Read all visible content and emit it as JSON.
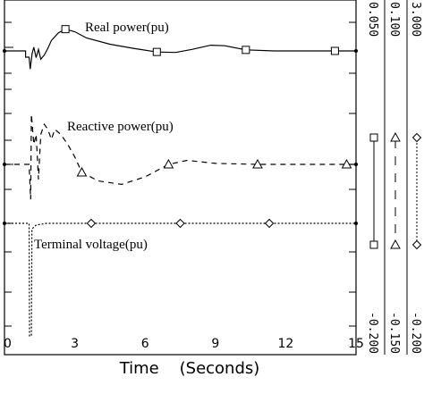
{
  "chart_data": {
    "type": "line",
    "xlabel": "Time    (Seconds)",
    "xlim": [
      0,
      15
    ],
    "x_ticks": [
      "0",
      "3",
      "6",
      "9",
      "12",
      "15"
    ],
    "series": [
      {
        "name": "Real power(pu)",
        "marker": "square",
        "line_style": "solid",
        "scale_top_label": "0.050",
        "scale_bottom_label": "-0.200",
        "right_scale_top_label": "0.100",
        "right_scale_bottom_label": "-0.200",
        "baseline": 0.0,
        "ylim": [
          -0.2,
          0.05
        ],
        "marker_x": [
          2.6,
          6.5,
          10.3,
          14.1
        ],
        "points": [
          [
            0,
            0
          ],
          [
            0.9,
            0
          ],
          [
            0.9,
            -0.012
          ],
          [
            1.05,
            -0.012
          ],
          [
            1.1,
            -0.035
          ],
          [
            1.18,
            -0.005
          ],
          [
            1.25,
            0.007
          ],
          [
            1.35,
            -0.013
          ],
          [
            1.45,
            0.003
          ],
          [
            1.55,
            -0.016
          ],
          [
            1.7,
            -0.008
          ],
          [
            1.85,
            0.005
          ],
          [
            2.0,
            0.02
          ],
          [
            2.3,
            0.035
          ],
          [
            2.6,
            0.042
          ],
          [
            3.0,
            0.037
          ],
          [
            3.5,
            0.025
          ],
          [
            4.5,
            0.013
          ],
          [
            5.5,
            0.005
          ],
          [
            6.5,
            -0.002
          ],
          [
            7.3,
            -0.003
          ],
          [
            8.0,
            0.003
          ],
          [
            8.8,
            0.011
          ],
          [
            9.4,
            0.01
          ],
          [
            10.3,
            0.002
          ],
          [
            11.5,
            0.0
          ],
          [
            14.1,
            0.0
          ],
          [
            15,
            0.0
          ]
        ]
      },
      {
        "name": "Reactive power(pu)",
        "marker": "triangle",
        "line_style": "dashed",
        "scale_top_label": "0.100",
        "scale_bottom_label": "-0.150",
        "baseline": 0.0,
        "ylim": [
          -0.15,
          0.1
        ],
        "marker_x": [
          3.3,
          7.0,
          10.8,
          14.6
        ],
        "points": [
          [
            0,
            0
          ],
          [
            1.05,
            0
          ],
          [
            1.12,
            -0.07
          ],
          [
            1.15,
            0.1
          ],
          [
            1.25,
            0.04
          ],
          [
            1.35,
            0.06
          ],
          [
            1.45,
            -0.03
          ],
          [
            1.55,
            0.06
          ],
          [
            1.7,
            0.08
          ],
          [
            1.85,
            0.07
          ],
          [
            2.0,
            0.05
          ],
          [
            2.15,
            0.07
          ],
          [
            2.4,
            0.06
          ],
          [
            2.7,
            0.04
          ],
          [
            3.0,
            0.015
          ],
          [
            3.3,
            -0.016
          ],
          [
            4.0,
            -0.033
          ],
          [
            5.0,
            -0.04
          ],
          [
            6.0,
            -0.025
          ],
          [
            7.0,
            0.0
          ],
          [
            7.8,
            0.008
          ],
          [
            9.0,
            0.002
          ],
          [
            10.8,
            0.0
          ],
          [
            14.6,
            0.0
          ],
          [
            15,
            0.0
          ]
        ]
      },
      {
        "name": "Terminal voltage(pu)",
        "marker": "diamond",
        "line_style": "dotted",
        "scale_top_label": "3.000",
        "scale_bottom_label": "-0.200",
        "baseline": 0.0,
        "ylim": [
          -0.2,
          0.05
        ],
        "marker_x": [
          3.7,
          7.5,
          11.3
        ],
        "points": [
          [
            0,
            0
          ],
          [
            1.05,
            0
          ],
          [
            1.07,
            -0.2
          ],
          [
            1.15,
            -0.2
          ],
          [
            1.17,
            -0.01
          ],
          [
            1.35,
            -0.003
          ],
          [
            1.8,
            0.0
          ],
          [
            15,
            0.0
          ]
        ]
      }
    ]
  }
}
